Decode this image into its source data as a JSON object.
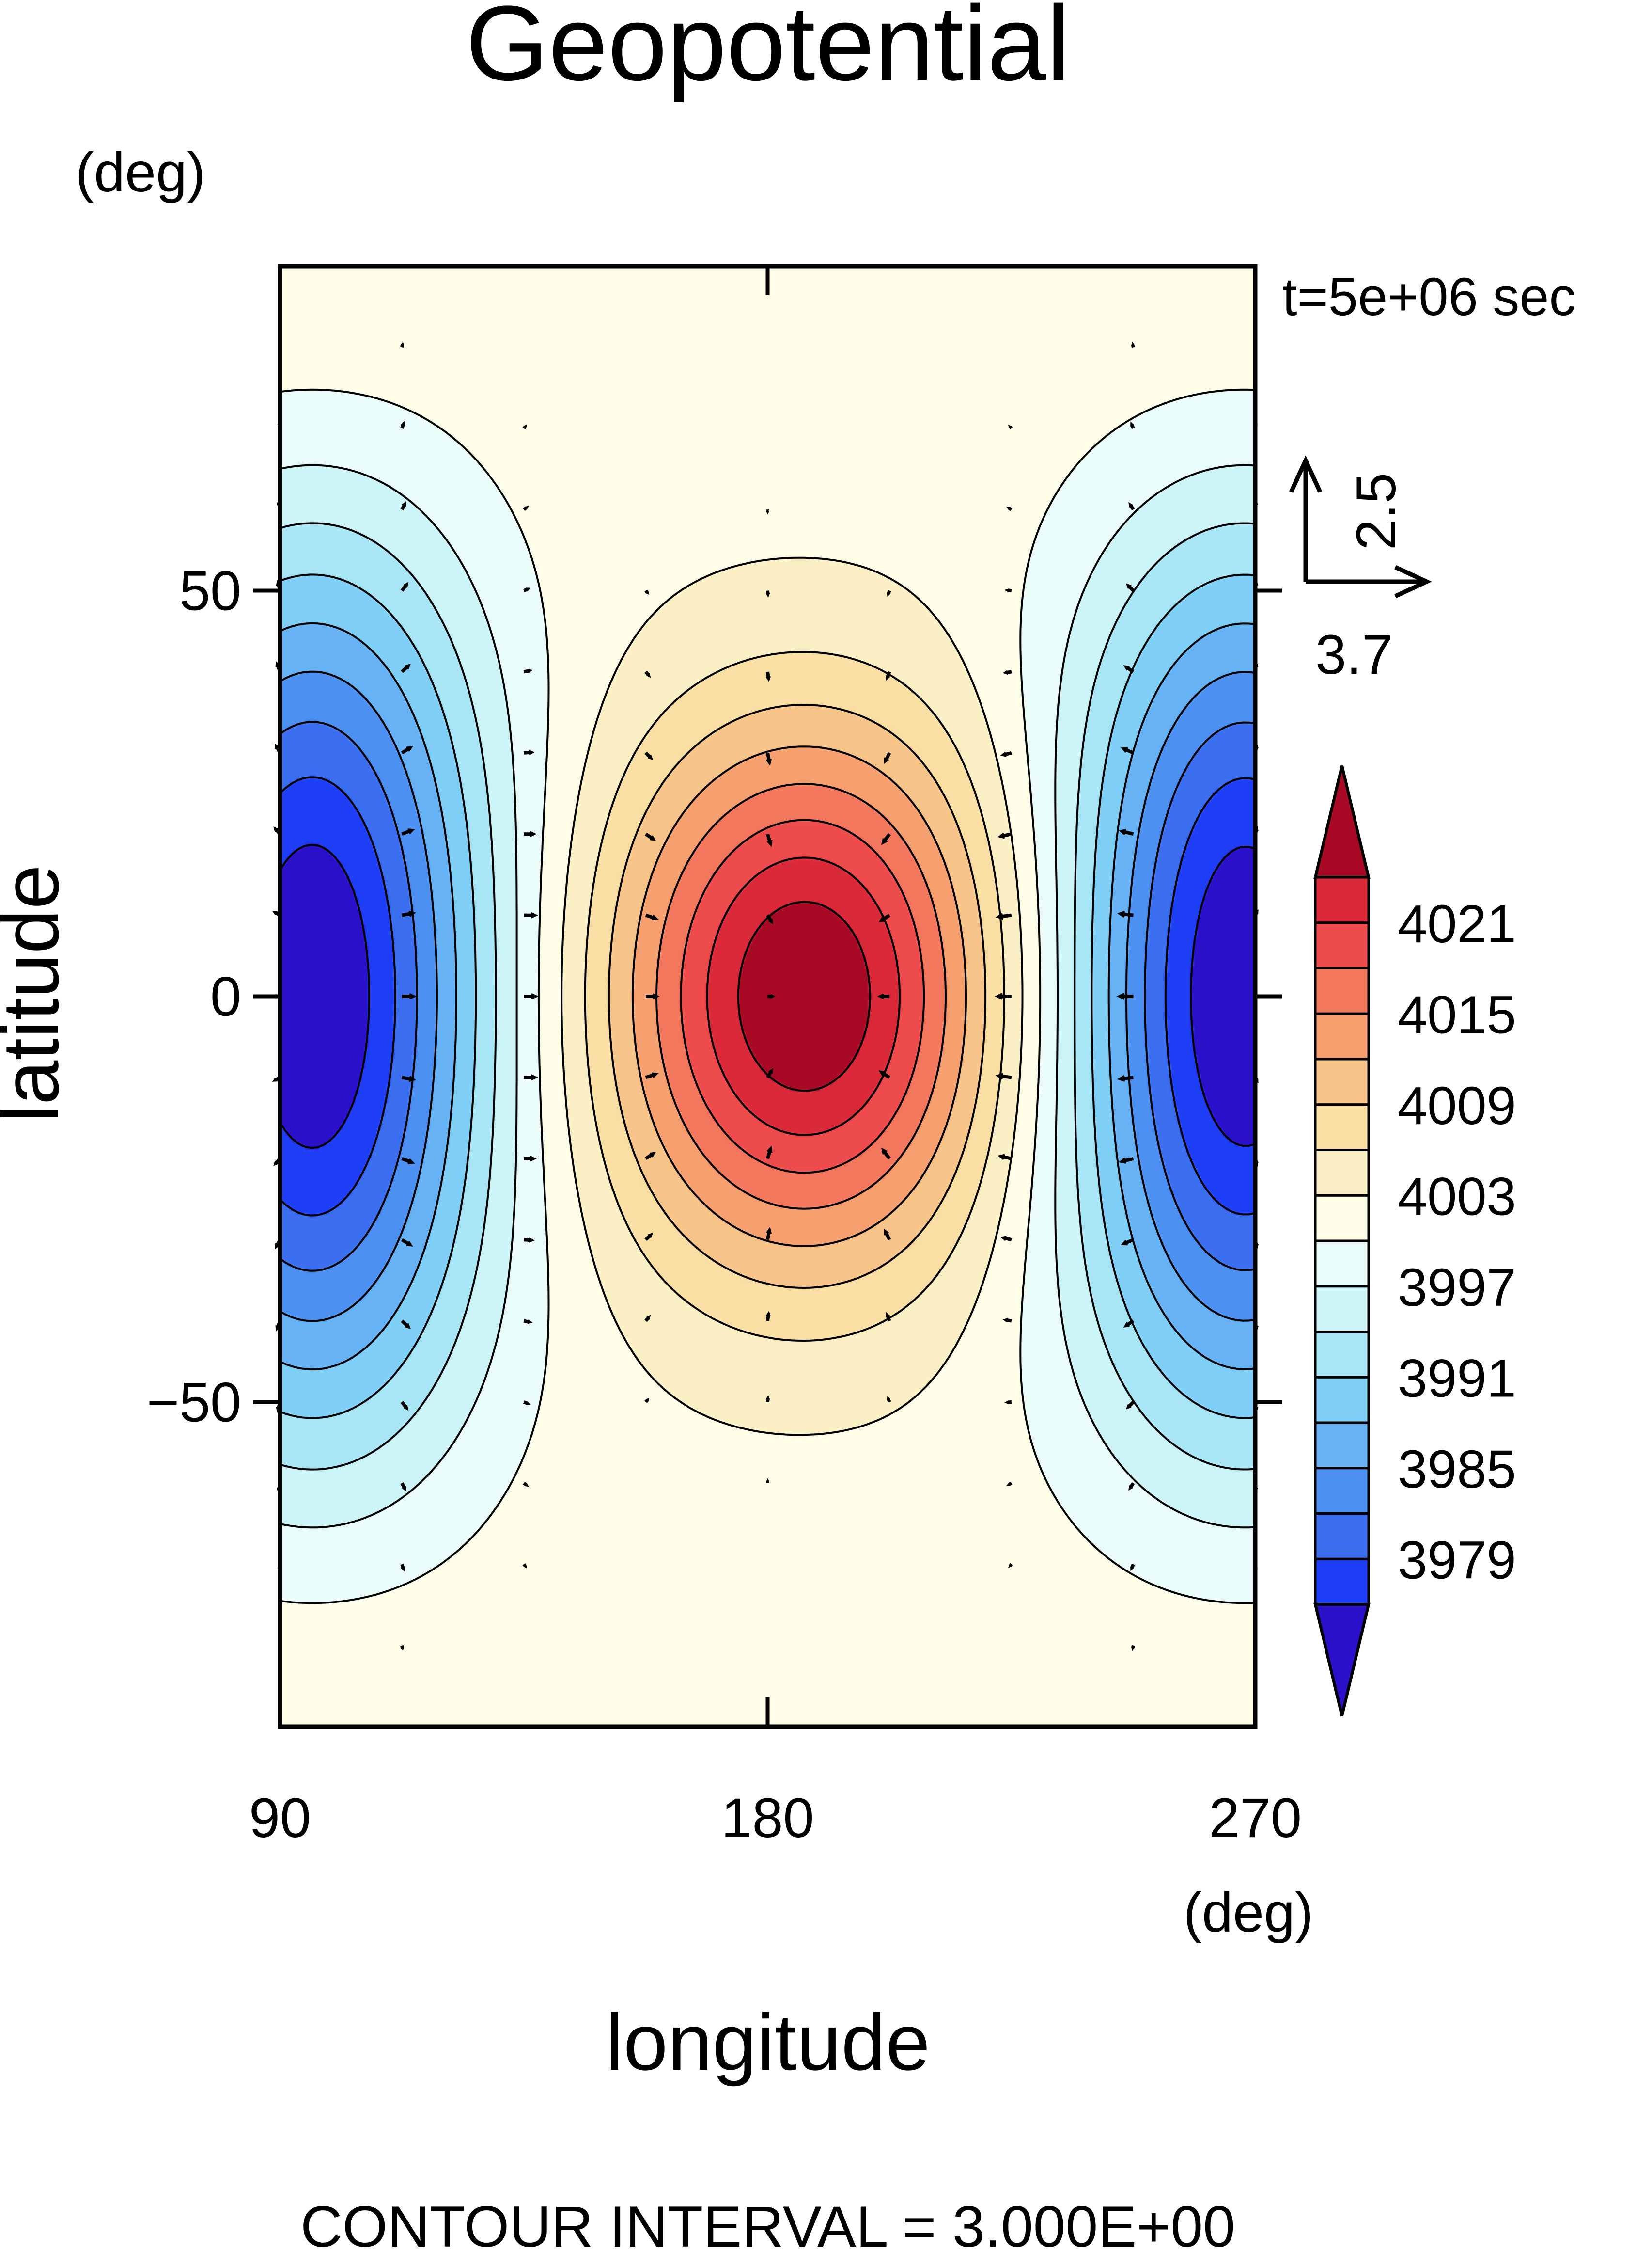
{
  "chart_data": {
    "type": "heatmap",
    "title": "Geopotential",
    "xlabel": "longitude",
    "ylabel": "latitude",
    "x_unit": "(deg)",
    "y_unit": "(deg)",
    "time_label": "t=5e+06 sec",
    "xlim": [
      90,
      270
    ],
    "ylim": [
      -90,
      90
    ],
    "x_ticks": [
      90,
      180,
      270
    ],
    "x_tick_labels": [
      "90",
      "180",
      "270"
    ],
    "y_ticks": [
      50,
      0,
      -50
    ],
    "y_tick_labels": [
      "50",
      "0",
      "−50"
    ],
    "field": {
      "description_of_values": "shallow-water geopotential height, high centered near lon 187 lat 0, lows centered near lon 95 and lon 268 at lat 0",
      "high_center": {
        "lon": 187,
        "lat": 0,
        "peak": 4027
      },
      "low_centers": [
        {
          "lon": 96,
          "lat": 0,
          "trough": 3973
        },
        {
          "lon": 268,
          "lat": 0,
          "trough": 3973
        }
      ],
      "background": 4002
    },
    "contour_interval_label": "CONTOUR INTERVAL = 3.000E+00",
    "colorbar": {
      "labels": [
        "4021",
        "4015",
        "4009",
        "4003",
        "3997",
        "3991",
        "3985",
        "3979"
      ],
      "levels": [
        3976,
        3979,
        3982,
        3985,
        3988,
        3991,
        3994,
        3997,
        4000,
        4003,
        4006,
        4009,
        4012,
        4015,
        4018,
        4021,
        4024
      ],
      "colors": [
        "#2a10c9",
        "#1f3ff7",
        "#3b6ff0",
        "#4c90f2",
        "#66b2f5",
        "#7fcff7",
        "#a8e6f6",
        "#cdf4f6",
        "#eafcf9",
        "#fdfde8",
        "#fbf0c5",
        "#f9dfa3",
        "#f7c489",
        "#f6a06f",
        "#f2775c",
        "#ee4c4c",
        "#da2a3a",
        "#a80a26"
      ],
      "extend": "both"
    },
    "vector_reference": {
      "x_label": "3.7",
      "y_label": "2.5"
    }
  }
}
